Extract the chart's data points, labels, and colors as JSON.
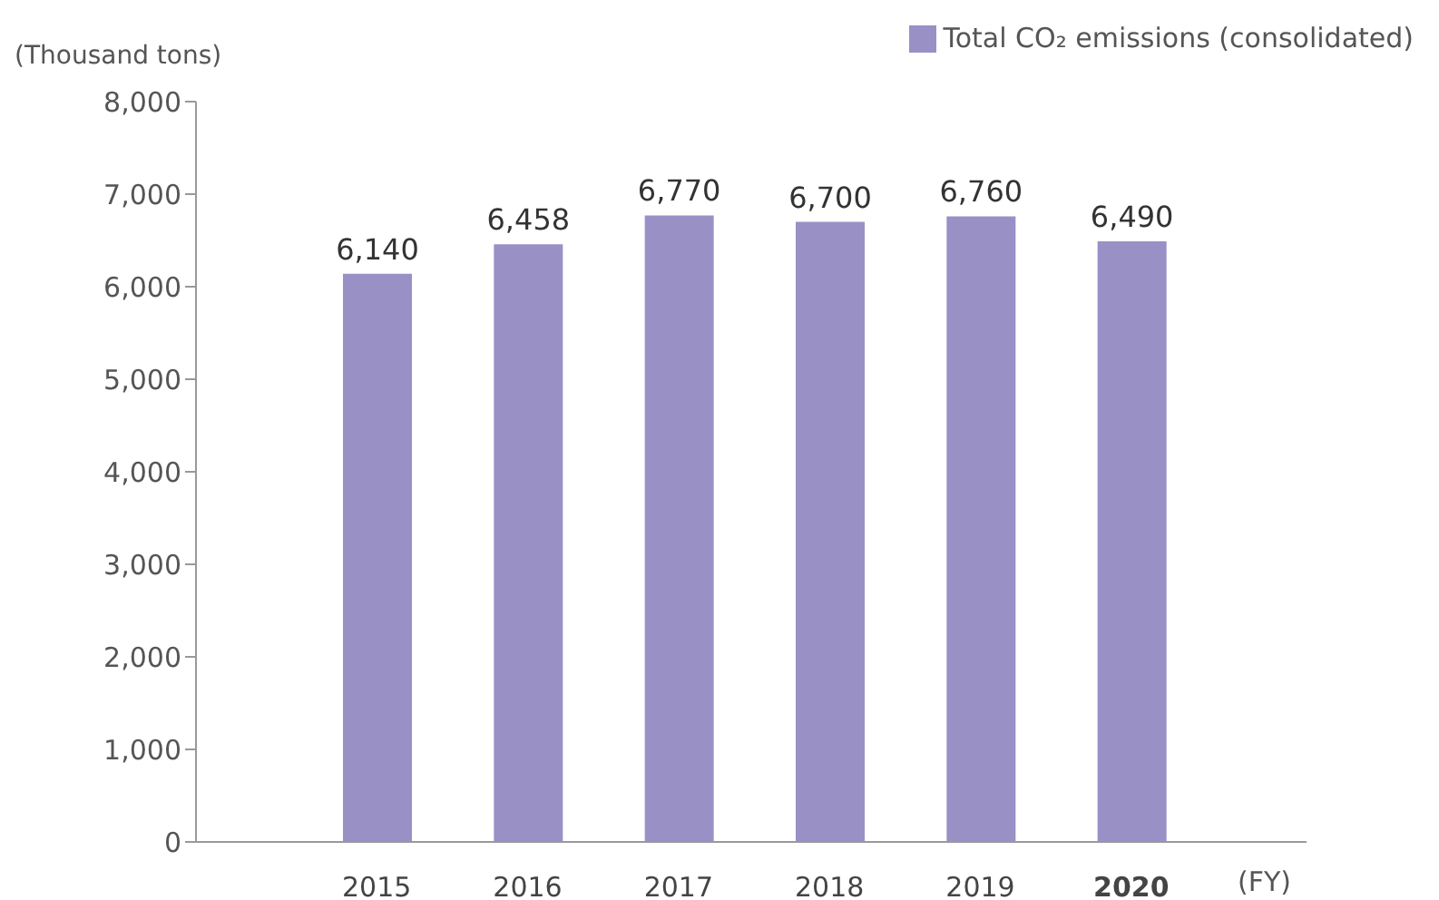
{
  "chart_data": {
    "type": "bar",
    "ylabel": "(Thousand tons)",
    "xlabel": "(FY)",
    "categories": [
      "2015",
      "2016",
      "2017",
      "2018",
      "2019",
      "2020"
    ],
    "series": [
      {
        "name": "Total CO₂ emissions (consolidated)",
        "color": "#9990c6",
        "values": [
          6140,
          6458,
          6770,
          6700,
          6760,
          6490
        ],
        "value_labels": [
          "6,140",
          "6,458",
          "6,770",
          "6,700",
          "6,760",
          "6,490"
        ]
      }
    ],
    "ylim": [
      0,
      8000
    ],
    "yticks": [
      {
        "value": 0,
        "label": "0"
      },
      {
        "value": 1000,
        "label": "1,000"
      },
      {
        "value": 2000,
        "label": "2,000"
      },
      {
        "value": 3000,
        "label": "3,000"
      },
      {
        "value": 4000,
        "label": "4,000"
      },
      {
        "value": 5000,
        "label": "5,000"
      },
      {
        "value": 6000,
        "label": "6,000"
      },
      {
        "value": 7000,
        "label": "7,000"
      },
      {
        "value": 8000,
        "label": "8,000"
      }
    ],
    "grid": false,
    "legend": "top right"
  }
}
